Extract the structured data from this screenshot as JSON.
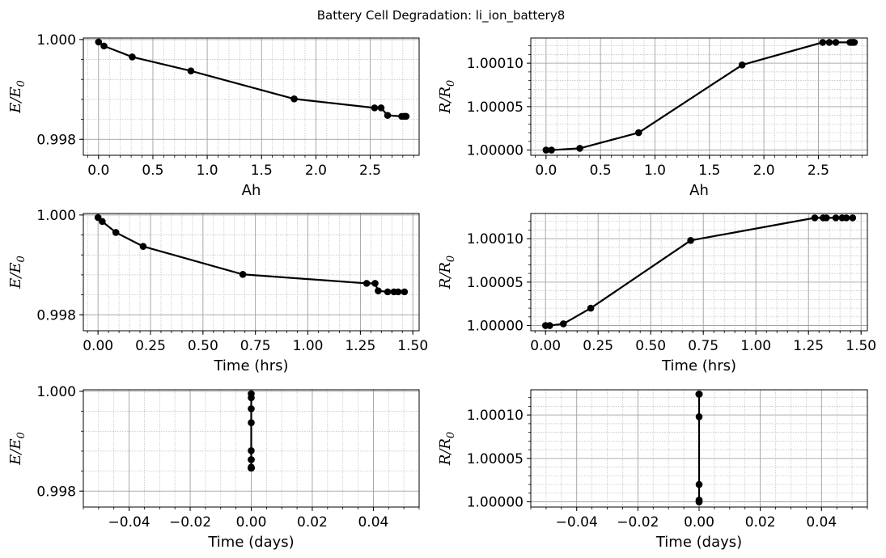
{
  "figure": {
    "title": "Battery Cell Degradation: li_ion_battery8"
  },
  "colors": {
    "series": "#000000",
    "major_grid": "#999999",
    "minor_grid": "#bbbbbb"
  },
  "chart_data": [
    {
      "id": "energy-vs-ah",
      "type": "line",
      "xlabel": "Ah",
      "ylabel": "E/E0",
      "xlim": [
        -0.14,
        2.95
      ],
      "ylim": [
        0.99768,
        1.00003
      ],
      "x_ticks": [
        0.0,
        0.5,
        1.0,
        1.5,
        2.0,
        2.5
      ],
      "x_tick_labels": [
        "0.0",
        "0.5",
        "1.0",
        "1.5",
        "2.0",
        "2.5"
      ],
      "x_minor_step": 0.1,
      "y_ticks": [
        0.998,
        1.0
      ],
      "y_tick_labels": [
        "0.998",
        "1.000"
      ],
      "y_minor_step": 0.0004,
      "grid": true,
      "series": [
        {
          "x": [
            0.0,
            0.05,
            0.31,
            0.85,
            1.8,
            2.54,
            2.6,
            2.66,
            2.79,
            2.81,
            2.82,
            2.83
          ],
          "y": [
            0.99995,
            0.99987,
            0.99965,
            0.99937,
            0.99881,
            0.99863,
            0.99863,
            0.99848,
            0.99846,
            0.99846,
            0.99846,
            0.99846
          ]
        }
      ]
    },
    {
      "id": "resistance-vs-ah",
      "type": "line",
      "xlabel": "Ah",
      "ylabel": "R/R0",
      "xlim": [
        -0.14,
        2.95
      ],
      "ylim": [
        0.999994,
        1.000129
      ],
      "x_ticks": [
        0.0,
        0.5,
        1.0,
        1.5,
        2.0,
        2.5
      ],
      "x_tick_labels": [
        "0.0",
        "0.5",
        "1.0",
        "1.5",
        "2.0",
        "2.5"
      ],
      "x_minor_step": 0.1,
      "y_ticks": [
        1.0,
        1.00005,
        1.0001
      ],
      "y_tick_labels": [
        "1.00000",
        "1.00005",
        "1.00010"
      ],
      "y_minor_step": 1e-05,
      "grid": true,
      "series": [
        {
          "x": [
            0.0,
            0.05,
            0.31,
            0.85,
            1.8,
            2.54,
            2.6,
            2.66,
            2.79,
            2.81,
            2.82,
            2.83
          ],
          "y": [
            1.0,
            1.0,
            1.000002,
            1.00002,
            1.000098,
            1.000124,
            1.000124,
            1.000124,
            1.000124,
            1.000124,
            1.000124,
            1.000124
          ]
        }
      ]
    },
    {
      "id": "energy-vs-time-hrs",
      "type": "line",
      "xlabel": "Time (hrs)",
      "ylabel": "E/E0",
      "xlim": [
        -0.07,
        1.53
      ],
      "ylim": [
        0.99768,
        1.00003
      ],
      "x_ticks": [
        0.0,
        0.25,
        0.5,
        0.75,
        1.0,
        1.25,
        1.5
      ],
      "x_tick_labels": [
        "0.00",
        "0.25",
        "0.50",
        "0.75",
        "1.00",
        "1.25",
        "1.50"
      ],
      "x_minor_step": 0.05,
      "y_ticks": [
        0.998,
        1.0
      ],
      "y_tick_labels": [
        "0.998",
        "1.000"
      ],
      "y_minor_step": 0.0004,
      "grid": true,
      "series": [
        {
          "x": [
            0.0,
            0.02,
            0.085,
            0.215,
            0.69,
            1.28,
            1.32,
            1.335,
            1.38,
            1.41,
            1.43,
            1.46
          ],
          "y": [
            0.99995,
            0.99987,
            0.99965,
            0.99937,
            0.99881,
            0.99863,
            0.99863,
            0.99848,
            0.99846,
            0.99846,
            0.99846,
            0.99846
          ]
        }
      ]
    },
    {
      "id": "resistance-vs-time-hrs",
      "type": "line",
      "xlabel": "Time (hrs)",
      "ylabel": "R/R0",
      "xlim": [
        -0.07,
        1.53
      ],
      "ylim": [
        0.999994,
        1.000129
      ],
      "x_ticks": [
        0.0,
        0.25,
        0.5,
        0.75,
        1.0,
        1.25,
        1.5
      ],
      "x_tick_labels": [
        "0.00",
        "0.25",
        "0.50",
        "0.75",
        "1.00",
        "1.25",
        "1.50"
      ],
      "x_minor_step": 0.05,
      "y_ticks": [
        1.0,
        1.00005,
        1.0001
      ],
      "y_tick_labels": [
        "1.00000",
        "1.00005",
        "1.00010"
      ],
      "y_minor_step": 1e-05,
      "grid": true,
      "series": [
        {
          "x": [
            0.0,
            0.02,
            0.085,
            0.215,
            0.69,
            1.28,
            1.32,
            1.335,
            1.38,
            1.41,
            1.43,
            1.46
          ],
          "y": [
            1.0,
            1.0,
            1.000002,
            1.00002,
            1.000098,
            1.000124,
            1.000124,
            1.000124,
            1.000124,
            1.000124,
            1.000124,
            1.000124
          ]
        }
      ]
    },
    {
      "id": "energy-vs-time-days",
      "type": "line",
      "xlabel": "Time (days)",
      "ylabel": "E/E0",
      "xlim": [
        -0.055,
        0.055
      ],
      "ylim": [
        0.99768,
        1.00003
      ],
      "x_ticks": [
        -0.04,
        -0.02,
        0.0,
        0.02,
        0.04
      ],
      "x_tick_labels": [
        "−0.04",
        "−0.02",
        "0.00",
        "0.02",
        "0.04"
      ],
      "x_minor_step": 0.005,
      "y_ticks": [
        0.998,
        1.0
      ],
      "y_tick_labels": [
        "0.998",
        "1.000"
      ],
      "y_minor_step": 0.0004,
      "grid": true,
      "series": [
        {
          "x": [
            0.0,
            0.0,
            0.0,
            0.0,
            0.0,
            0.0,
            0.0,
            0.0,
            0.0,
            0.0,
            0.0,
            0.0
          ],
          "y": [
            0.99995,
            0.99987,
            0.99965,
            0.99937,
            0.99881,
            0.99863,
            0.99863,
            0.99848,
            0.99846,
            0.99846,
            0.99846,
            0.99846
          ]
        }
      ]
    },
    {
      "id": "resistance-vs-time-days",
      "type": "line",
      "xlabel": "Time (days)",
      "ylabel": "R/R0",
      "xlim": [
        -0.055,
        0.055
      ],
      "ylim": [
        0.999994,
        1.000129
      ],
      "x_ticks": [
        -0.04,
        -0.02,
        0.0,
        0.02,
        0.04
      ],
      "x_tick_labels": [
        "−0.04",
        "−0.02",
        "0.00",
        "0.02",
        "0.04"
      ],
      "x_minor_step": 0.005,
      "y_ticks": [
        1.0,
        1.00005,
        1.0001
      ],
      "y_tick_labels": [
        "1.00000",
        "1.00005",
        "1.00010"
      ],
      "y_minor_step": 1e-05,
      "grid": true,
      "series": [
        {
          "x": [
            0.0,
            0.0,
            0.0,
            0.0,
            0.0,
            0.0,
            0.0,
            0.0,
            0.0,
            0.0,
            0.0,
            0.0
          ],
          "y": [
            1.0,
            1.0,
            1.000002,
            1.00002,
            1.000098,
            1.000124,
            1.000124,
            1.000124,
            1.000124,
            1.000124,
            1.000124,
            1.000124
          ]
        }
      ]
    }
  ]
}
